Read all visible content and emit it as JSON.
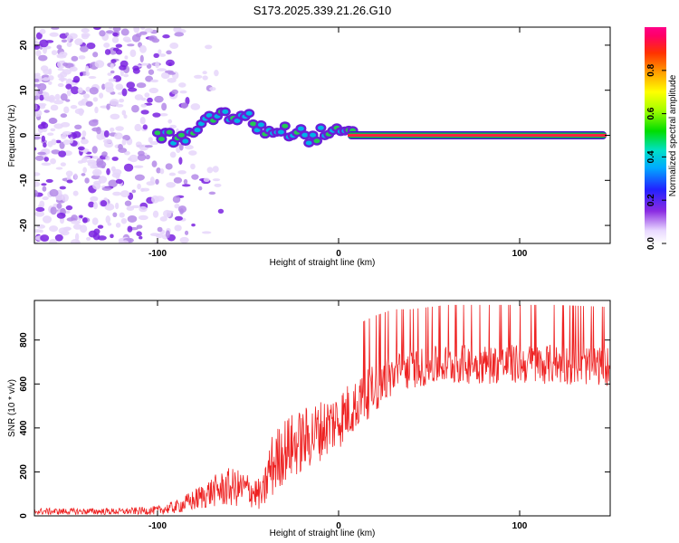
{
  "title": "S173.2025.339.21.26.G10",
  "chart_data": [
    {
      "type": "heatmap",
      "xlabel": "Height of straight line (km)",
      "ylabel": "Frequency (Hz)",
      "xlim": [
        -168,
        150
      ],
      "ylim": [
        -24,
        24
      ],
      "xticks": [
        -100,
        0,
        100
      ],
      "yticks": [
        -20,
        -10,
        0,
        10,
        20
      ],
      "grid": false,
      "colorbar": {
        "label": "Normalized spectral amplitude",
        "range": [
          0.0,
          1.0
        ],
        "ticks": [
          0.0,
          0.2,
          0.4,
          0.6,
          0.8
        ]
      },
      "ridge": [
        {
          "x": -100,
          "y": 0.0
        },
        {
          "x": -85,
          "y": -1.0
        },
        {
          "x": -80,
          "y": 0.5
        },
        {
          "x": -75,
          "y": 2.0
        },
        {
          "x": -70,
          "y": 4.0
        },
        {
          "x": -65,
          "y": 5.0
        },
        {
          "x": -58,
          "y": 3.5
        },
        {
          "x": -50,
          "y": 4.0
        },
        {
          "x": -45,
          "y": 2.0
        },
        {
          "x": -40,
          "y": 1.0
        },
        {
          "x": -30,
          "y": 1.0
        },
        {
          "x": -20,
          "y": 0.5
        },
        {
          "x": -15,
          "y": -1.0
        },
        {
          "x": -10,
          "y": 0.5
        },
        {
          "x": 0,
          "y": 0.5
        },
        {
          "x": 10,
          "y": 0.0
        },
        {
          "x": 148,
          "y": 0.0
        }
      ],
      "noise_region_x": [
        -168,
        -85
      ],
      "noise_region_y": [
        -24,
        24
      ]
    },
    {
      "type": "line",
      "xlabel": "Height of straight line (km)",
      "ylabel": "SNR (10 * v/v)",
      "xlim": [
        -168,
        150
      ],
      "ylim": [
        0,
        980
      ],
      "xticks": [
        -100,
        0,
        100
      ],
      "yticks": [
        0,
        200,
        400,
        600,
        800
      ],
      "grid": false,
      "series": [
        {
          "name": "SNR",
          "color": "#ee2222",
          "envelope_x": [
            -168,
            -120,
            -100,
            -90,
            -80,
            -70,
            -60,
            -50,
            -42,
            -38,
            -30,
            -20,
            -10,
            0,
            10,
            20,
            30,
            40,
            60,
            80,
            100,
            120,
            150
          ],
          "envelope_mean": [
            20,
            20,
            25,
            40,
            70,
            110,
            130,
            120,
            90,
            210,
            300,
            340,
            390,
            440,
            510,
            580,
            640,
            670,
            690,
            690,
            690,
            690,
            680
          ],
          "envelope_spread": [
            15,
            15,
            20,
            30,
            50,
            70,
            90,
            80,
            70,
            150,
            150,
            150,
            140,
            140,
            120,
            110,
            100,
            90,
            90,
            90,
            90,
            90,
            90
          ]
        }
      ]
    }
  ]
}
